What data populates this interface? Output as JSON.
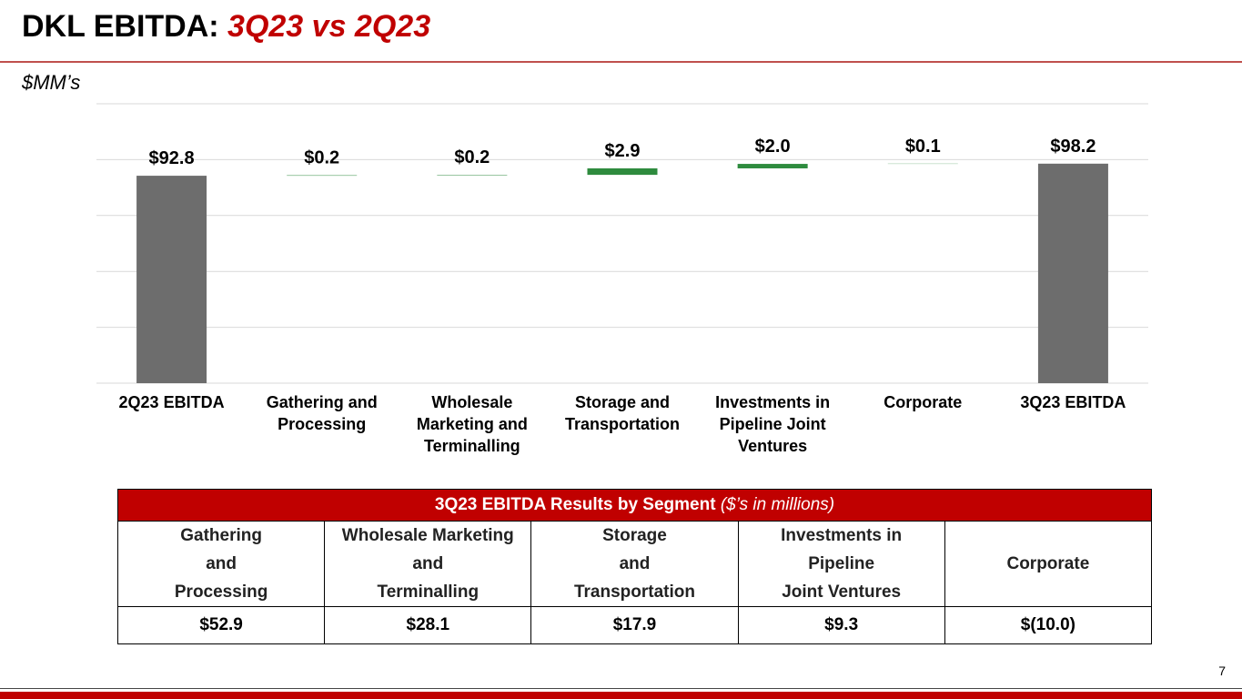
{
  "header": {
    "title": "DKL EBITDA:",
    "title_highlight": "3Q23 vs 2Q23",
    "subtitle": "$MM’s"
  },
  "chart_data": {
    "type": "waterfall",
    "categories": [
      "2Q23 EBITDA",
      "Gathering and Processing",
      "Wholesale Marketing and Terminalling",
      "Storage and Transportation",
      "Investments in Pipeline Joint Ventures",
      "Corporate",
      "3Q23 EBITDA"
    ],
    "values": [
      92.8,
      0.2,
      0.2,
      2.9,
      2.0,
      0.1,
      98.2
    ],
    "value_labels": [
      "$92.8",
      "$0.2",
      "$0.2",
      "$2.9",
      "$2.0",
      "$0.1",
      "$98.2"
    ],
    "totals": [
      true,
      false,
      false,
      false,
      false,
      false,
      true
    ],
    "total_color": "#6d6d6d",
    "change_color": "#2e8b3e",
    "ylim": [
      0,
      125
    ],
    "yticks": [
      0,
      25,
      50,
      75,
      100,
      125
    ],
    "show_ytick_labels": false,
    "grid": true
  },
  "table": {
    "title": "3Q23 EBITDA Results by Segment",
    "title_note": "($’s in millions)",
    "headers": [
      "Gathering\nand\nProcessing",
      "Wholesale Marketing\nand\nTerminalling",
      "Storage\nand\nTransportation",
      "Investments in\nPipeline\nJoint Ventures",
      "Corporate"
    ],
    "rows": [
      [
        "$52.9",
        "$28.1",
        "$17.9",
        "$9.3",
        "$(10.0)"
      ]
    ]
  },
  "footer": {
    "page_number": "7"
  }
}
